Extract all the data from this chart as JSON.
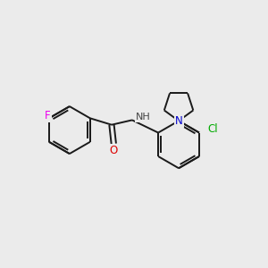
{
  "background_color": "#ebebeb",
  "bond_color": "#1a1a1a",
  "atom_colors": {
    "F": "#ee00ee",
    "O": "#dd0000",
    "N": "#0000cc",
    "Cl": "#00aa00",
    "H": "#444444",
    "C": "#111111"
  },
  "figsize": [
    3.0,
    3.0
  ],
  "dpi": 100,
  "lw": 1.4,
  "fs": 8.5
}
